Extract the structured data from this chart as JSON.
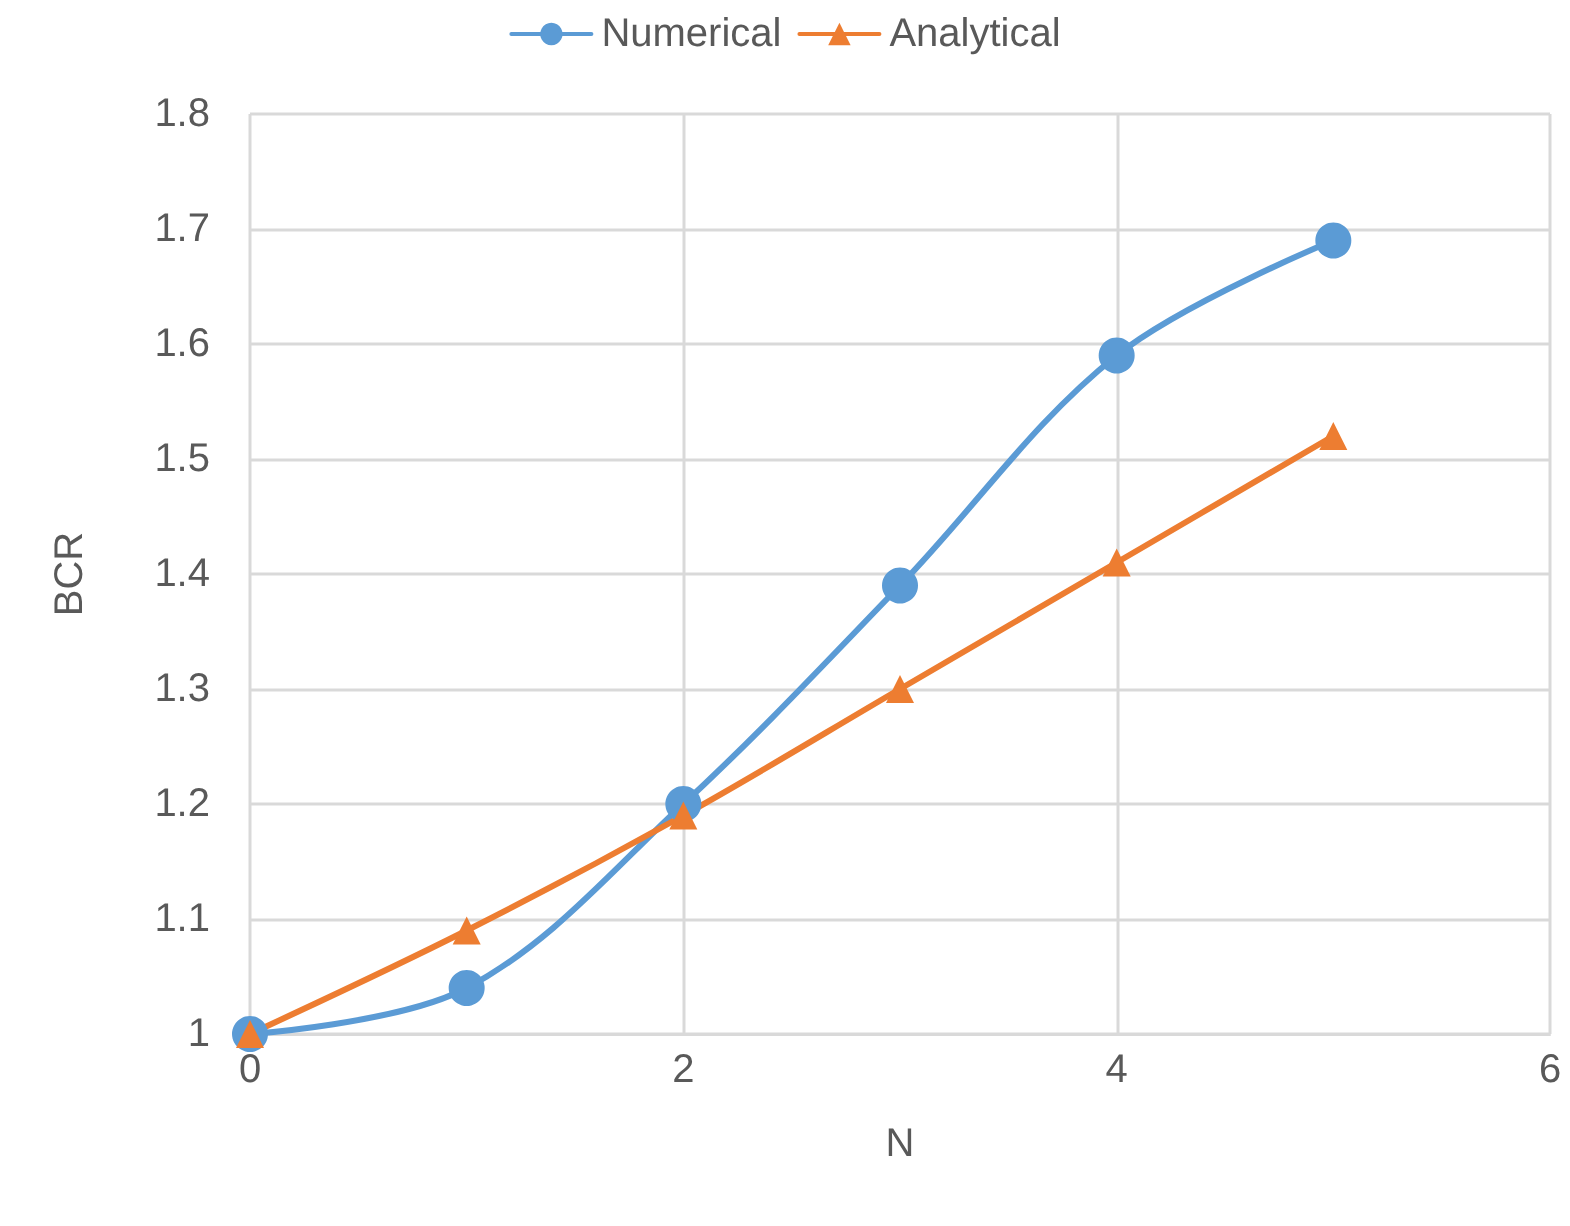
{
  "chart_data": {
    "type": "line",
    "xlabel": "N",
    "ylabel": "BCR",
    "x": [
      0,
      1,
      2,
      3,
      4,
      5
    ],
    "series": [
      {
        "name": "Numerical",
        "color": "#5b9bd5",
        "marker": "circle",
        "values": [
          1.0,
          1.04,
          1.2,
          1.39,
          1.59,
          1.69
        ]
      },
      {
        "name": "Analytical",
        "color": "#ed7d31",
        "marker": "triangle",
        "values": [
          1.0,
          1.09,
          1.19,
          1.3,
          1.41,
          1.52
        ]
      }
    ],
    "xlim": [
      0,
      6
    ],
    "xticks": [
      0,
      2,
      4,
      6
    ],
    "ylim": [
      1,
      1.8
    ],
    "yticks": [
      1,
      1.1,
      1.2,
      1.3,
      1.4,
      1.5,
      1.6,
      1.7,
      1.8
    ],
    "grid": true,
    "legend": "top"
  }
}
